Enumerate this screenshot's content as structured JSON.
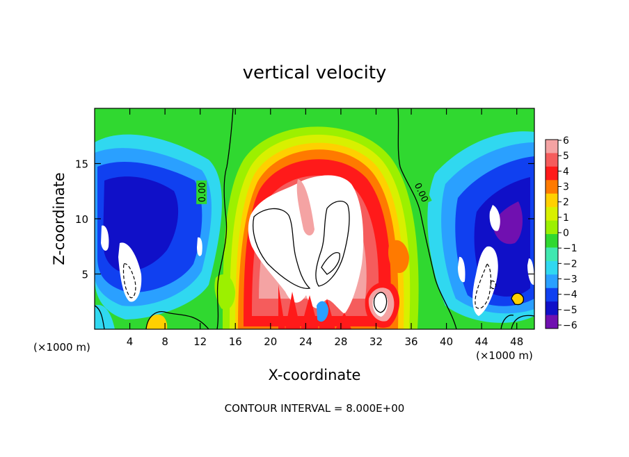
{
  "chart_data": {
    "type": "heatmap",
    "title": "vertical velocity",
    "xlabel": "X-coordinate",
    "ylabel": "Z-coordinate",
    "x_unit_left": "(×1000 m)",
    "x_unit_right": "(×1000 m)",
    "xlim": [
      0,
      50
    ],
    "ylim": [
      0,
      20
    ],
    "x_ticks": [
      4,
      8,
      12,
      16,
      20,
      24,
      28,
      32,
      36,
      40,
      44,
      48
    ],
    "y_ticks": [
      5,
      10,
      15
    ],
    "colorbar": {
      "levels": [
        6,
        5,
        4,
        3,
        2,
        1,
        0,
        -1,
        -2,
        -3,
        -4,
        -5,
        -6
      ],
      "tick_labels": [
        "6",
        "5",
        "4",
        "3",
        "2",
        "1",
        "0",
        "−1",
        "−2",
        "−3",
        "−4",
        "−5",
        "−6"
      ],
      "colors": [
        "#f4a3a3",
        "#f55c5c",
        "#ff1a1a",
        "#ff7a00",
        "#ffd000",
        "#d8f000",
        "#9cf000",
        "#30d830",
        "#40e8b0",
        "#30d8f0",
        "#2aa0ff",
        "#1040f0",
        "#1010c8",
        "#7010b0"
      ]
    },
    "contour_labels": [
      {
        "text": "0.00",
        "x": 12.2,
        "y": 12.4
      },
      {
        "text": "0.00",
        "x": 37.2,
        "y": 12.4
      }
    ],
    "saturated_regions": [
      {
        "kind": "updraft",
        "x_center": 23.5,
        "y_center": 9.0,
        "max_above_colorbar": true
      },
      {
        "kind": "updraft",
        "x_center": 32.0,
        "y_center": 2.7,
        "max_above_colorbar": true
      },
      {
        "kind": "downdraft",
        "x_center": 4.0,
        "y_center": 5.0,
        "min_below_colorbar": true
      },
      {
        "kind": "downdraft",
        "x_center": 45.0,
        "y_center": 6.0,
        "min_below_colorbar": true
      }
    ],
    "footnote": "CONTOUR INTERVAL = 8.000E+00"
  }
}
